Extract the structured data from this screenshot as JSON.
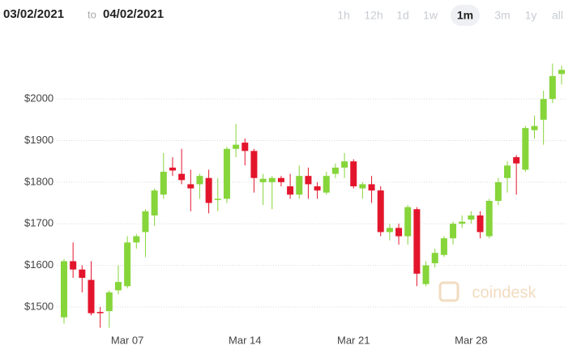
{
  "chart_data": {
    "type": "candlestick",
    "date_from": "03/02/2021",
    "date_separator": "to",
    "date_to": "04/02/2021",
    "ranges": [
      "1h",
      "12h",
      "1d",
      "1w",
      "1m",
      "3m",
      "1y",
      "all"
    ],
    "selected_range": "1m",
    "watermark": "coindesk",
    "categories": [
      null,
      null,
      null,
      null,
      null,
      null,
      null,
      "Mar 07",
      null,
      null,
      null,
      null,
      null,
      null,
      null,
      null,
      null,
      null,
      null,
      null,
      "Mar 14",
      null,
      null,
      null,
      null,
      null,
      null,
      null,
      null,
      null,
      null,
      null,
      "Mar 21",
      null,
      null,
      null,
      null,
      null,
      null,
      null,
      null,
      null,
      null,
      null,
      null,
      "Mar 28",
      null,
      null,
      null,
      null,
      null,
      null,
      null,
      null,
      null,
      null
    ],
    "open": [
      1475,
      1610,
      1590,
      1565,
      1488,
      1490,
      1540,
      1550,
      1655,
      1680,
      1720,
      1770,
      1835,
      1820,
      1795,
      1795,
      1810,
      1758,
      1760,
      1880,
      1895,
      1875,
      1800,
      1800,
      1810,
      1790,
      1770,
      1815,
      1790,
      1775,
      1820,
      1835,
      1850,
      1785,
      1795,
      1780,
      1680,
      1690,
      1670,
      1735,
      1555,
      1605,
      1625,
      1665,
      1700,
      1710,
      1720,
      1670,
      1755,
      1810,
      1860,
      1830,
      1925,
      1950,
      2000,
      2060
    ],
    "high": [
      1615,
      1655,
      1600,
      1610,
      1500,
      1540,
      1600,
      1670,
      1675,
      1735,
      1785,
      1870,
      1860,
      1880,
      1830,
      1820,
      1830,
      1810,
      1885,
      1940,
      1905,
      1880,
      1820,
      1815,
      1815,
      1820,
      1840,
      1835,
      1800,
      1825,
      1845,
      1870,
      1855,
      1800,
      1815,
      1790,
      1700,
      1700,
      1745,
      1740,
      1610,
      1640,
      1670,
      1705,
      1720,
      1730,
      1730,
      1760,
      1810,
      1850,
      1865,
      1935,
      1960,
      2020,
      2085,
      2080
    ],
    "low": [
      1460,
      1570,
      1535,
      1480,
      1450,
      1450,
      1530,
      1545,
      1640,
      1620,
      1695,
      1760,
      1815,
      1795,
      1730,
      1760,
      1725,
      1730,
      1750,
      1860,
      1840,
      1775,
      1745,
      1735,
      1790,
      1760,
      1760,
      1760,
      1760,
      1770,
      1810,
      1810,
      1785,
      1760,
      1750,
      1670,
      1660,
      1650,
      1650,
      1550,
      1550,
      1595,
      1620,
      1650,
      1690,
      1700,
      1665,
      1665,
      1745,
      1775,
      1770,
      1825,
      1905,
      1890,
      1990,
      2035
    ],
    "close": [
      1610,
      1590,
      1570,
      1485,
      1485,
      1535,
      1560,
      1655,
      1670,
      1730,
      1780,
      1825,
      1828,
      1805,
      1785,
      1815,
      1750,
      1760,
      1880,
      1890,
      1875,
      1810,
      1808,
      1810,
      1800,
      1770,
      1815,
      1795,
      1780,
      1815,
      1835,
      1850,
      1790,
      1795,
      1780,
      1680,
      1690,
      1670,
      1740,
      1580,
      1600,
      1630,
      1665,
      1700,
      1705,
      1720,
      1680,
      1755,
      1800,
      1840,
      1845,
      1930,
      1935,
      2000,
      2055,
      2070
    ],
    "up_color": "#86d53a",
    "down_color": "#e3152c",
    "ylim": [
      1420,
      2160
    ],
    "yticks": [
      {
        "value": 1500,
        "label": "$1500"
      },
      {
        "value": 1600,
        "label": "$1600"
      },
      {
        "value": 1700,
        "label": "$1700"
      },
      {
        "value": 1800,
        "label": "$1800"
      },
      {
        "value": 1900,
        "label": "$1900"
      },
      {
        "value": 2000,
        "label": "$2000"
      }
    ],
    "grid": true
  }
}
